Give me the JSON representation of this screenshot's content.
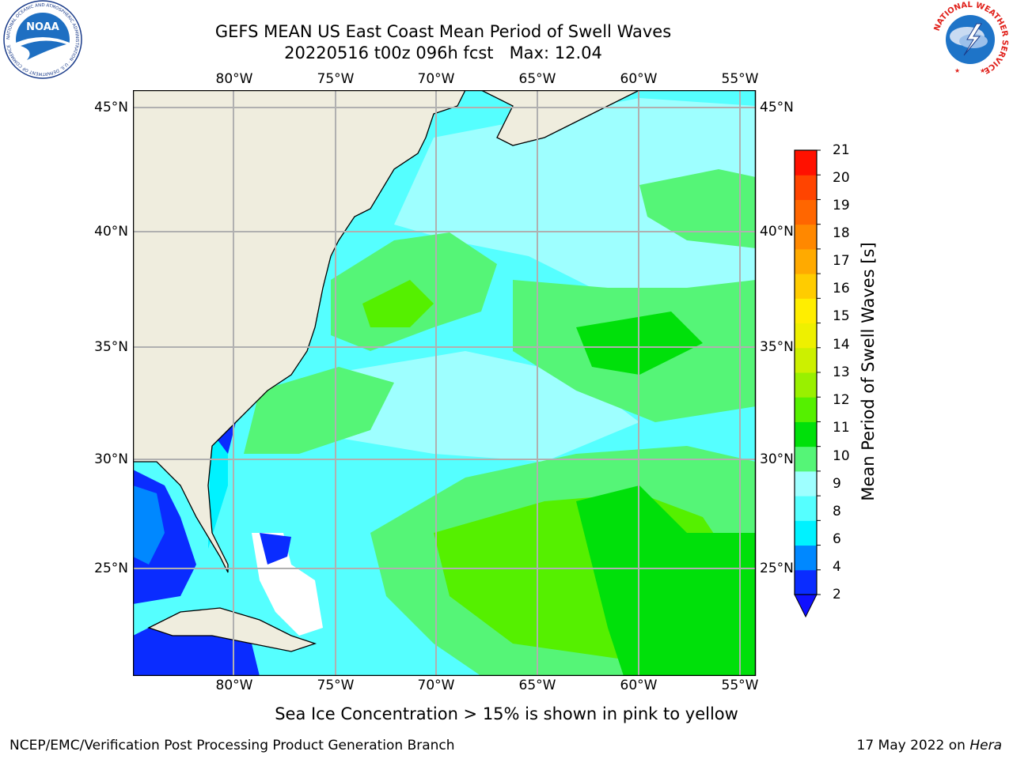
{
  "title": {
    "line1": "GEFS MEAN US East Coast Mean Period of Swell Waves",
    "line2": "20220516 t00z 096h fcst   Max: 12.04"
  },
  "map": {
    "lon_labels": [
      "80°W",
      "75°W",
      "70°W",
      "65°W",
      "60°W",
      "55°W"
    ],
    "lat_labels": [
      "45°N",
      "40°N",
      "35°N",
      "30°N",
      "25°N"
    ],
    "extent": {
      "lon_min": -85,
      "lon_max": -55,
      "lat_min": 20.5,
      "lat_max": 46
    },
    "colors": {
      "land": "#efedde",
      "grid": "#b0b0b0",
      "coast": "#000000"
    }
  },
  "colorbar": {
    "label": "Mean Period of Swell Waves [s]",
    "ticks": [
      "21",
      "20",
      "19",
      "18",
      "17",
      "16",
      "15",
      "14",
      "13",
      "12",
      "11",
      "10",
      "9",
      "8",
      "6",
      "4",
      "2"
    ],
    "colors_bottom_to_top": [
      "#0a2cff",
      "#0088ff",
      "#00f2ff",
      "#55ffff",
      "#9effff",
      "#55f577",
      "#00e00a",
      "#55f000",
      "#99f000",
      "#ccf000",
      "#eef000",
      "#ffee00",
      "#ffcc00",
      "#ffaa00",
      "#ff8800",
      "#ff6600",
      "#ff4400",
      "#ff1100"
    ],
    "extend_color": "#1010ff"
  },
  "footer": {
    "note": "Sea Ice Concentration > 15% is shown in pink to yellow",
    "credit": "NCEP/EMC/Verification Post Processing Product Generation Branch",
    "date": "17 May 2022 on",
    "host": "Hera"
  },
  "logos": {
    "left": {
      "text": "NOAA",
      "ring_text": "NATIONAL OCEANIC AND ATMOSPHERIC ADMINISTRATION · U.S. DEPARTMENT OF COMMERCE"
    },
    "right": {
      "ring_text": "NATIONAL WEATHER SERVICE"
    }
  }
}
